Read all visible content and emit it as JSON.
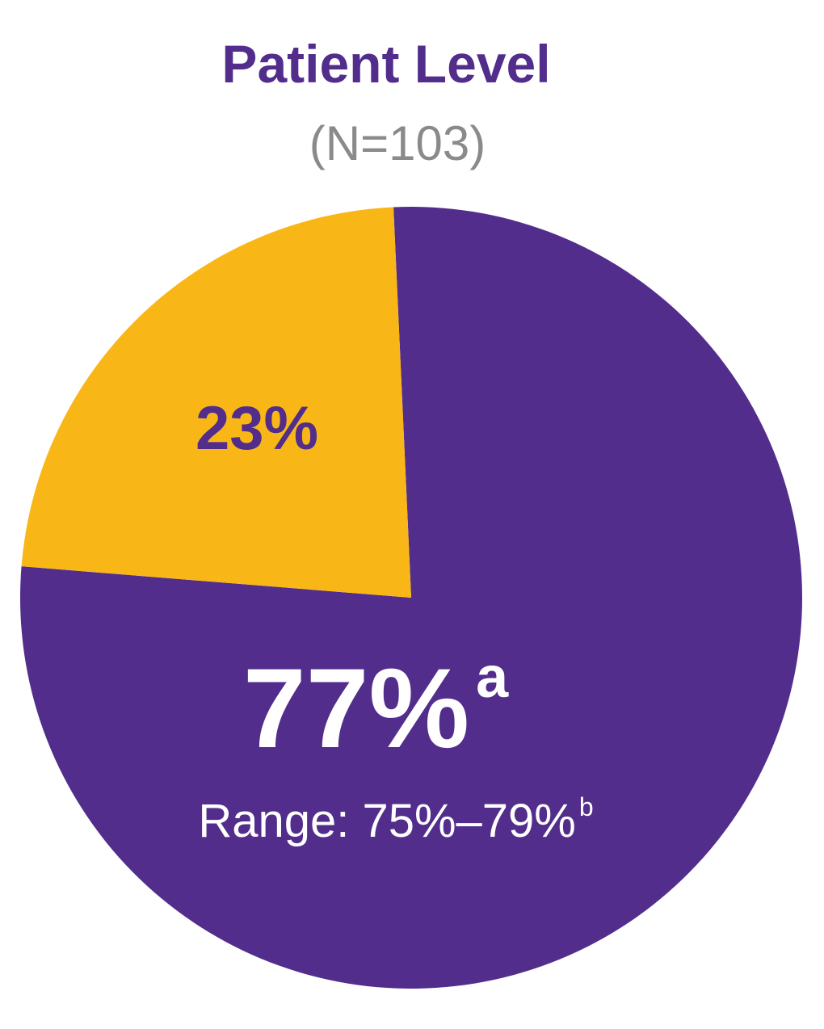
{
  "chart_data": {
    "type": "pie",
    "title": "Patient Level",
    "subtitle": "(N=103)",
    "values": [
      77,
      23
    ],
    "value_labels": [
      "77%",
      "23%"
    ],
    "value_label_notes": [
      "a",
      null
    ],
    "colors": [
      "#522d8c",
      "#f9b717"
    ],
    "annotations": [
      {
        "text": "Range: 75%–79%",
        "note": "b"
      }
    ]
  }
}
